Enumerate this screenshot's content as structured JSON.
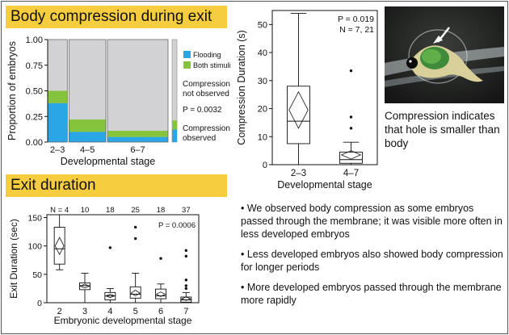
{
  "banner1": "Body compression during exit",
  "banner2": "Exit duration",
  "caption": "Compression indicates that hole is smaller than body",
  "bullets": [
    "• We observed body compression as some embryos passed through the membrane; it was visible more often in less developed embryos",
    "• Less developed embryos also showed body compression for longer periods",
    "• More developed embryos passed through the membrane more rapidly"
  ],
  "colors": {
    "banner": "#f5cd3e",
    "flooding": "#2aa6e6",
    "both": "#86c33d",
    "not_observed": "#d2d2d4"
  },
  "chart_data": [
    {
      "type": "mosaic",
      "ylabel": "Proportion of embryos",
      "xlabel": "Developmental stage",
      "ylim": [
        0,
        1
      ],
      "yticks": [
        "0.00",
        "0.25",
        "0.50",
        "0.75",
        "1.00"
      ],
      "categories": [
        "2–3",
        "4–5",
        "6–7"
      ],
      "column_width_fraction": [
        0.17,
        0.32,
        0.51
      ],
      "series": [
        {
          "name": "Flooding",
          "values": [
            0.38,
            0.1,
            0.05
          ]
        },
        {
          "name": "Both stimuli",
          "values": [
            0.12,
            0.12,
            0.06
          ]
        }
      ],
      "legend": [
        "Flooding",
        "Both stimuli"
      ],
      "annotations": [
        "Compression not observed",
        "P = 0.0032",
        "Compression observed"
      ]
    },
    {
      "type": "boxplot",
      "ylabel": "Compression Duration (s)",
      "xlabel": "Developmental stage",
      "ylim": [
        0,
        55
      ],
      "yticks": [
        0,
        10,
        20,
        30,
        40,
        50
      ],
      "categories": [
        "2–3",
        "4–7"
      ],
      "annotations": [
        "P = 0.019",
        "N = 7, 21"
      ],
      "boxes": [
        {
          "min": 0,
          "q1": 7.5,
          "median": 15.5,
          "q3": 28,
          "max": 54,
          "mean": 19.5,
          "ci": [
            13,
            26
          ],
          "outliers": []
        },
        {
          "min": 0,
          "q1": 0.5,
          "median": 1.8,
          "q3": 4.5,
          "max": 8,
          "mean": 3.5,
          "ci": [
            2,
            5
          ],
          "outliers": [
            33.5,
            17,
            13
          ]
        }
      ]
    },
    {
      "type": "boxplot",
      "ylabel": "Exit Duration (sec)",
      "xlabel": "Embryonic developmental stage",
      "ylim": [
        0,
        155
      ],
      "yticks": [
        0,
        50,
        100,
        150
      ],
      "categories": [
        "2",
        "3",
        "4",
        "5",
        "6",
        "7"
      ],
      "counts": [
        "N = 4",
        "10",
        "18",
        "25",
        "18",
        "37"
      ],
      "annotations": [
        "P = 0.0006"
      ],
      "boxes": [
        {
          "min": 58,
          "q1": 68,
          "median": 95,
          "q3": 133,
          "max": 155,
          "mean": 100,
          "ci": [
            85,
            115
          ],
          "outliers": []
        },
        {
          "min": 0,
          "q1": 23,
          "median": 30,
          "q3": 35,
          "max": 52,
          "mean": 29,
          "ci": [
            26,
            33
          ],
          "outliers": []
        },
        {
          "min": 0,
          "q1": 5,
          "median": 12,
          "q3": 18,
          "max": 25,
          "mean": 12,
          "ci": [
            9,
            15
          ],
          "outliers": [
            97
          ]
        },
        {
          "min": 0,
          "q1": 8,
          "median": 15,
          "q3": 28,
          "max": 52,
          "mean": 17,
          "ci": [
            12,
            22
          ],
          "outliers": [
            133,
            113
          ]
        },
        {
          "min": 0,
          "q1": 7,
          "median": 12,
          "q3": 24,
          "max": 33,
          "mean": 15,
          "ci": [
            11,
            19
          ],
          "outliers": [
            78
          ]
        },
        {
          "min": 0,
          "q1": 1,
          "median": 5,
          "q3": 10,
          "max": 18,
          "mean": 7,
          "ci": [
            4,
            10
          ],
          "outliers": [
            92,
            82,
            40,
            30,
            25
          ]
        }
      ]
    }
  ]
}
